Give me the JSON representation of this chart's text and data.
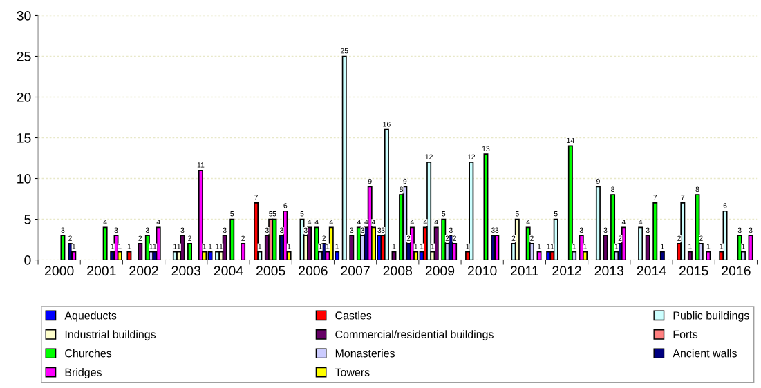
{
  "chart_data": {
    "type": "bar",
    "categories": [
      "2000",
      "2001",
      "2002",
      "2003",
      "2004",
      "2005",
      "2006",
      "2007",
      "2008",
      "2009",
      "2010",
      "2011",
      "2012",
      "2013",
      "2014",
      "2015",
      "2016"
    ],
    "series": [
      {
        "name": "Aqueducts",
        "color": "#0000ff",
        "values": [
          null,
          null,
          null,
          null,
          1,
          null,
          null,
          1,
          3,
          1,
          null,
          null,
          1,
          null,
          null,
          null,
          null
        ]
      },
      {
        "name": "Castles",
        "color": "#ff0000",
        "values": [
          null,
          null,
          1,
          null,
          null,
          7,
          null,
          null,
          3,
          4,
          1,
          null,
          1,
          null,
          null,
          2,
          1
        ]
      },
      {
        "name": "Public buildings",
        "color": "#ccffff",
        "values": [
          null,
          null,
          null,
          1,
          1,
          1,
          5,
          25,
          16,
          12,
          12,
          2,
          5,
          9,
          4,
          7,
          6
        ]
      },
      {
        "name": "Industrial buildings",
        "color": "#ffffcc",
        "values": [
          null,
          null,
          null,
          1,
          1,
          null,
          3,
          null,
          null,
          1,
          null,
          5,
          null,
          null,
          null,
          null,
          null
        ]
      },
      {
        "name": "Commercial/residential buildings",
        "color": "#660066",
        "values": [
          null,
          null,
          2,
          3,
          3,
          3,
          4,
          3,
          1,
          4,
          null,
          null,
          null,
          3,
          3,
          1,
          null
        ]
      },
      {
        "name": "Forts",
        "color": "#ff8080",
        "values": [
          null,
          null,
          null,
          null,
          null,
          5,
          null,
          null,
          null,
          null,
          null,
          null,
          null,
          null,
          null,
          null,
          null
        ]
      },
      {
        "name": "Churches",
        "color": "#00ff00",
        "values": [
          3,
          4,
          3,
          2,
          5,
          5,
          4,
          4,
          8,
          5,
          13,
          4,
          14,
          8,
          7,
          8,
          3
        ]
      },
      {
        "name": "Monasteries",
        "color": "#ccccff",
        "values": [
          null,
          null,
          1,
          null,
          null,
          null,
          1,
          3,
          9,
          2,
          null,
          2,
          1,
          1,
          null,
          2,
          1
        ]
      },
      {
        "name": "Ancient walls",
        "color": "#000080",
        "values": [
          2,
          1,
          1,
          null,
          null,
          3,
          2,
          4,
          2,
          3,
          3,
          null,
          null,
          2,
          1,
          null,
          null
        ]
      },
      {
        "name": "Bridges",
        "color": "#ff00ff",
        "values": [
          1,
          3,
          4,
          11,
          2,
          6,
          1,
          9,
          4,
          2,
          3,
          1,
          3,
          4,
          null,
          1,
          3
        ]
      },
      {
        "name": "Towers",
        "color": "#ffff00",
        "values": [
          null,
          1,
          null,
          1,
          null,
          1,
          4,
          4,
          1,
          null,
          null,
          null,
          1,
          null,
          null,
          null,
          null
        ]
      }
    ],
    "ylim": [
      0,
      30
    ],
    "yticks": [
      0,
      5,
      10,
      15,
      20,
      25,
      30
    ],
    "grid": "y",
    "legend": "bottom",
    "data_labels": true
  }
}
